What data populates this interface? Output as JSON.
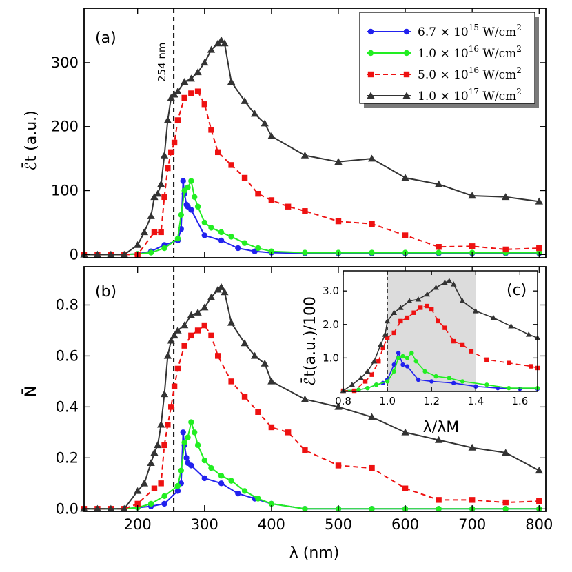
{
  "chart_data": [
    {
      "id": "a",
      "type": "line",
      "panel_label": "(a)",
      "xlabel": "λ (nm)",
      "ylabel": "ℰ̄t (a.u.)",
      "xlim": [
        120,
        810
      ],
      "ylim": [
        -5,
        385
      ],
      "xticks": [
        200,
        300,
        400,
        500,
        600,
        700,
        800
      ],
      "yticks": [
        0,
        100,
        200,
        300
      ],
      "ytick_labels": [
        "0",
        "100",
        "200",
        "300"
      ],
      "annotation": "254 nm",
      "vline_x": 254,
      "series": [
        {
          "name": "6.7 × 10^15 W/cm²",
          "label_parts": [
            "6.7 × 10",
            "15",
            " W/cm",
            "2"
          ],
          "color": "#2222ee",
          "marker": "circle",
          "dash": "solid",
          "x": [
            120,
            140,
            160,
            180,
            200,
            220,
            240,
            260,
            265,
            268,
            270,
            273,
            275,
            280,
            300,
            325,
            350,
            375,
            400,
            450,
            500,
            550,
            600,
            650,
            700,
            750,
            800
          ],
          "y": [
            0,
            0,
            0,
            0,
            1,
            5,
            15,
            22,
            40,
            115,
            95,
            78,
            75,
            70,
            30,
            22,
            10,
            5,
            3,
            2,
            2,
            2,
            2,
            2,
            2,
            2,
            2
          ]
        },
        {
          "name": "1.0 × 10^16 W/cm²",
          "label_parts": [
            "1.0 × 10",
            "16",
            " W/cm",
            "2"
          ],
          "color": "#22ee22",
          "marker": "circle",
          "dash": "solid",
          "x": [
            120,
            140,
            160,
            180,
            200,
            220,
            240,
            260,
            265,
            270,
            275,
            280,
            285,
            290,
            300,
            310,
            325,
            340,
            360,
            380,
            400,
            450,
            500,
            550,
            600,
            650,
            700,
            750,
            800
          ],
          "y": [
            0,
            0,
            0,
            0,
            1,
            3,
            10,
            25,
            62,
            100,
            105,
            115,
            90,
            75,
            50,
            42,
            35,
            28,
            18,
            10,
            5,
            3,
            3,
            3,
            3,
            3,
            3,
            3,
            3
          ]
        },
        {
          "name": "5.0 × 10^16 W/cm²",
          "label_parts": [
            "5.0 × 10",
            "16",
            " W/cm",
            "2"
          ],
          "color": "#ee1111",
          "marker": "square",
          "dash": "dashed",
          "x": [
            120,
            140,
            160,
            180,
            200,
            225,
            235,
            240,
            245,
            250,
            255,
            260,
            270,
            280,
            290,
            300,
            310,
            320,
            340,
            360,
            380,
            400,
            425,
            450,
            500,
            550,
            600,
            650,
            700,
            750,
            800
          ],
          "y": [
            0,
            0,
            0,
            0,
            0,
            35,
            35,
            90,
            135,
            160,
            175,
            210,
            245,
            252,
            255,
            235,
            195,
            160,
            140,
            120,
            95,
            85,
            75,
            68,
            52,
            48,
            30,
            12,
            13,
            8,
            10
          ]
        },
        {
          "name": "1.0 × 10^17 W/cm²",
          "label_parts": [
            "1.0 × 10",
            "17",
            " W/cm",
            "2"
          ],
          "color": "#333333",
          "marker": "triangle",
          "dash": "solid",
          "x": [
            120,
            140,
            160,
            180,
            200,
            210,
            220,
            225,
            230,
            235,
            240,
            245,
            250,
            255,
            260,
            270,
            280,
            290,
            300,
            310,
            320,
            325,
            330,
            340,
            360,
            375,
            390,
            400,
            450,
            500,
            550,
            600,
            650,
            700,
            750,
            800
          ],
          "y": [
            0,
            0,
            0,
            0,
            15,
            35,
            60,
            90,
            95,
            110,
            155,
            210,
            245,
            250,
            255,
            270,
            275,
            285,
            300,
            320,
            330,
            335,
            330,
            270,
            240,
            220,
            205,
            185,
            155,
            145,
            150,
            120,
            110,
            92,
            90,
            83
          ]
        }
      ]
    },
    {
      "id": "b",
      "type": "line",
      "panel_label": "(b)",
      "xlabel": "λ (nm)",
      "ylabel": "N̄",
      "xlim": [
        120,
        810
      ],
      "ylim": [
        -0.01,
        0.95
      ],
      "xticks": [
        200,
        300,
        400,
        500,
        600,
        700,
        800
      ],
      "xtick_labels": [
        "200",
        "300",
        "400",
        "500",
        "600",
        "700",
        "800"
      ],
      "yticks": [
        0.0,
        0.2,
        0.4,
        0.6,
        0.8
      ],
      "ytick_labels": [
        "0.0",
        "0.2",
        "0.4",
        "0.6",
        "0.8"
      ],
      "vline_x": 254,
      "series": [
        {
          "name": "6.7 × 10^15 W/cm²",
          "color": "#2222ee",
          "marker": "circle",
          "dash": "solid",
          "x": [
            120,
            140,
            160,
            180,
            200,
            220,
            240,
            260,
            265,
            268,
            270,
            273,
            275,
            280,
            300,
            325,
            350,
            375,
            400,
            450,
            500,
            550,
            600,
            650,
            700,
            750,
            800
          ],
          "y": [
            0,
            0,
            0,
            0,
            0.005,
            0.01,
            0.02,
            0.07,
            0.1,
            0.3,
            0.25,
            0.2,
            0.18,
            0.17,
            0.12,
            0.1,
            0.06,
            0.04,
            0.02,
            0,
            0,
            0,
            0,
            0,
            0,
            0,
            0
          ]
        },
        {
          "name": "1.0 × 10^16 W/cm²",
          "color": "#22ee22",
          "marker": "circle",
          "dash": "solid",
          "x": [
            120,
            140,
            160,
            180,
            200,
            220,
            240,
            260,
            265,
            270,
            275,
            280,
            285,
            290,
            300,
            310,
            325,
            340,
            360,
            380,
            400,
            450,
            500,
            550,
            600,
            650,
            700,
            750,
            800
          ],
          "y": [
            0,
            0,
            0,
            0,
            0.005,
            0.02,
            0.05,
            0.09,
            0.15,
            0.26,
            0.28,
            0.34,
            0.3,
            0.25,
            0.19,
            0.16,
            0.13,
            0.11,
            0.07,
            0.04,
            0.02,
            0,
            0,
            0,
            0,
            0,
            0,
            0,
            0
          ]
        },
        {
          "name": "5.0 × 10^16 W/cm²",
          "color": "#ee1111",
          "marker": "square",
          "dash": "dashed",
          "x": [
            120,
            140,
            160,
            180,
            200,
            225,
            235,
            240,
            245,
            250,
            255,
            260,
            270,
            280,
            290,
            300,
            310,
            320,
            340,
            360,
            380,
            400,
            425,
            450,
            500,
            550,
            600,
            650,
            700,
            750,
            800
          ],
          "y": [
            0,
            0,
            0,
            0,
            0.02,
            0.08,
            0.1,
            0.25,
            0.33,
            0.4,
            0.48,
            0.55,
            0.64,
            0.68,
            0.7,
            0.72,
            0.68,
            0.6,
            0.5,
            0.44,
            0.38,
            0.32,
            0.3,
            0.23,
            0.17,
            0.16,
            0.08,
            0.035,
            0.035,
            0.025,
            0.03
          ]
        },
        {
          "name": "1.0 × 10^17 W/cm²",
          "color": "#333333",
          "marker": "triangle",
          "dash": "solid",
          "x": [
            120,
            140,
            160,
            180,
            200,
            210,
            220,
            225,
            230,
            235,
            240,
            245,
            250,
            255,
            260,
            270,
            280,
            290,
            300,
            310,
            320,
            325,
            330,
            340,
            360,
            375,
            390,
            400,
            450,
            500,
            550,
            600,
            650,
            700,
            750,
            800
          ],
          "y": [
            0,
            0,
            0,
            0,
            0.07,
            0.1,
            0.18,
            0.22,
            0.25,
            0.33,
            0.45,
            0.6,
            0.66,
            0.68,
            0.7,
            0.72,
            0.76,
            0.77,
            0.79,
            0.83,
            0.86,
            0.87,
            0.85,
            0.73,
            0.65,
            0.6,
            0.57,
            0.5,
            0.43,
            0.4,
            0.36,
            0.3,
            0.27,
            0.24,
            0.22,
            0.15
          ]
        }
      ]
    },
    {
      "id": "c",
      "type": "line",
      "panel_label": "(c)",
      "xlabel": "λ/λM",
      "ylabel": "ℰ̄t(a.u.)/100",
      "xlim": [
        0.8,
        1.68
      ],
      "ylim": [
        0.0,
        3.6
      ],
      "xticks": [
        0.8,
        1.0,
        1.2,
        1.4,
        1.6
      ],
      "xtick_labels": [
        "0.8",
        "1.0",
        "1.2",
        "1.4",
        "1.6"
      ],
      "yticks": [
        1.0,
        2.0,
        3.0
      ],
      "ytick_labels": [
        "1.0",
        "2.0",
        "3.0"
      ],
      "shaded_region": [
        1.0,
        1.4
      ],
      "vline_x": 1.0,
      "series": [
        {
          "name": "6.7 × 10^15 W/cm²",
          "color": "#2222ee",
          "marker": "circle",
          "dash": "solid",
          "x": [
            0.8,
            0.87,
            0.91,
            0.95,
            0.98,
            1.0,
            1.03,
            1.05,
            1.07,
            1.09,
            1.14,
            1.2,
            1.3,
            1.4,
            1.5,
            1.6,
            1.68
          ],
          "y": [
            0.02,
            0.05,
            0.1,
            0.2,
            0.25,
            0.35,
            0.8,
            1.15,
            0.8,
            0.75,
            0.35,
            0.3,
            0.25,
            0.15,
            0.1,
            0.08,
            0.08
          ]
        },
        {
          "name": "1.0 × 10^16 W/cm²",
          "color": "#22ee22",
          "marker": "circle",
          "dash": "solid",
          "x": [
            0.8,
            0.87,
            0.91,
            0.95,
            1.0,
            1.03,
            1.05,
            1.07,
            1.09,
            1.11,
            1.13,
            1.17,
            1.22,
            1.28,
            1.34,
            1.45,
            1.55,
            1.68
          ],
          "y": [
            0.02,
            0.05,
            0.1,
            0.2,
            0.3,
            0.6,
            1.0,
            1.05,
            1.0,
            1.15,
            0.9,
            0.6,
            0.45,
            0.4,
            0.3,
            0.2,
            0.1,
            0.1
          ]
        },
        {
          "name": "5.0 × 10^16 W/cm²",
          "color": "#ee1111",
          "marker": "square",
          "dash": "dashed",
          "x": [
            0.8,
            0.85,
            0.9,
            0.93,
            0.96,
            0.98,
            1.0,
            1.03,
            1.06,
            1.09,
            1.12,
            1.15,
            1.18,
            1.2,
            1.23,
            1.26,
            1.3,
            1.34,
            1.38,
            1.45,
            1.55,
            1.65,
            1.68
          ],
          "y": [
            0.02,
            0.02,
            0.3,
            0.5,
            0.9,
            1.3,
            1.6,
            1.75,
            2.1,
            2.2,
            2.35,
            2.5,
            2.55,
            2.45,
            2.1,
            1.9,
            1.5,
            1.4,
            1.2,
            0.95,
            0.85,
            0.75,
            0.7
          ]
        },
        {
          "name": "1.0 × 10^17 W/cm²",
          "color": "#333333",
          "marker": "triangle",
          "dash": "solid",
          "x": [
            0.8,
            0.84,
            0.88,
            0.91,
            0.94,
            0.97,
            0.99,
            1.0,
            1.03,
            1.06,
            1.1,
            1.14,
            1.18,
            1.22,
            1.26,
            1.28,
            1.3,
            1.34,
            1.4,
            1.48,
            1.56,
            1.64,
            1.68
          ],
          "y": [
            0.02,
            0.2,
            0.4,
            0.6,
            0.9,
            1.4,
            1.7,
            2.1,
            2.35,
            2.5,
            2.7,
            2.75,
            2.9,
            3.1,
            3.25,
            3.3,
            3.2,
            2.7,
            2.4,
            2.2,
            1.95,
            1.7,
            1.6
          ]
        }
      ]
    }
  ]
}
